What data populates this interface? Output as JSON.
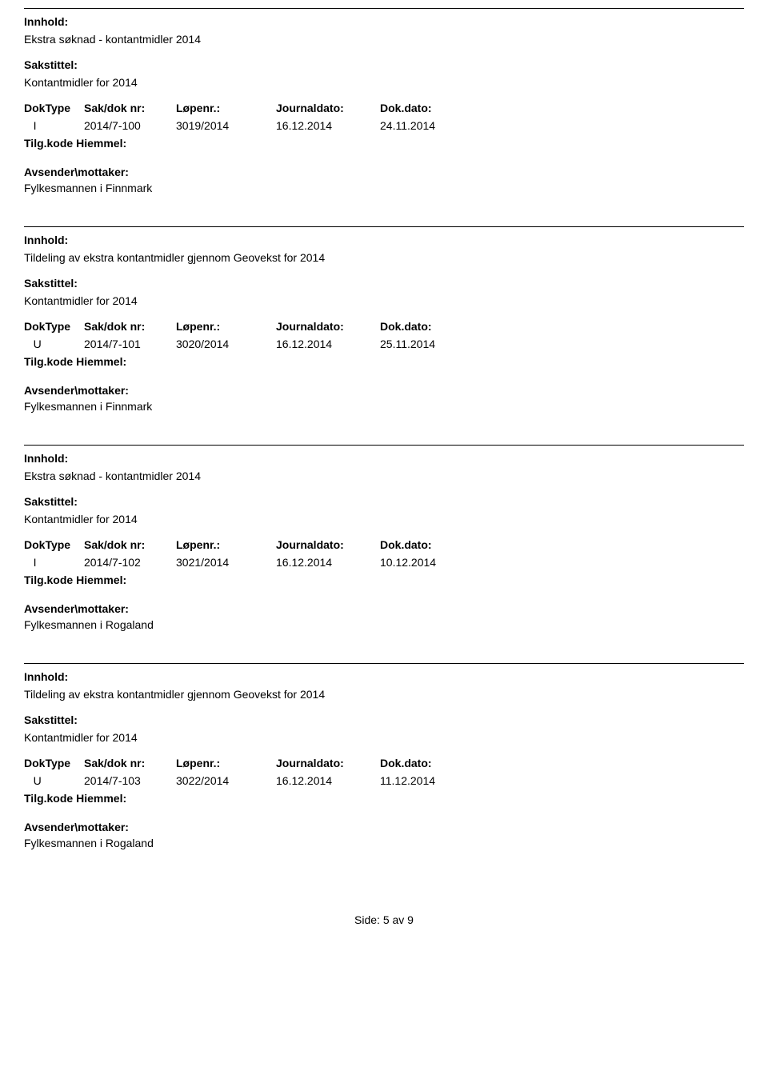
{
  "labels": {
    "innhold": "Innhold:",
    "sakstittel": "Sakstittel:",
    "doktype": "DokType",
    "sakdok": "Sak/dok nr:",
    "lopenr": "Løpenr.:",
    "journaldato": "Journaldato:",
    "dokdato": "Dok.dato:",
    "tilgkode": "Tilg.kode",
    "hjemmel": "Hiemmel:",
    "avsender": "Avsender\\mottaker:"
  },
  "entries": [
    {
      "innhold": "Ekstra søknad - kontantmidler 2014",
      "sakstittel": "Kontantmidler for 2014",
      "doktype": "I",
      "sakdok": "2014/7-100",
      "lopenr": "3019/2014",
      "journaldato": "16.12.2014",
      "dokdato": "24.11.2014",
      "avsender": "Fylkesmannen i  Finnmark"
    },
    {
      "innhold": "Tildeling av ekstra kontantmidler gjennom Geovekst for 2014",
      "sakstittel": "Kontantmidler for 2014",
      "doktype": "U",
      "sakdok": "2014/7-101",
      "lopenr": "3020/2014",
      "journaldato": "16.12.2014",
      "dokdato": "25.11.2014",
      "avsender": "Fylkesmannen i  Finnmark"
    },
    {
      "innhold": "Ekstra søknad - kontantmidler 2014",
      "sakstittel": "Kontantmidler for 2014",
      "doktype": "I",
      "sakdok": "2014/7-102",
      "lopenr": "3021/2014",
      "journaldato": "16.12.2014",
      "dokdato": "10.12.2014",
      "avsender": "Fylkesmannen i Rogaland"
    },
    {
      "innhold": "Tildeling av ekstra kontantmidler gjennom Geovekst for 2014",
      "sakstittel": "Kontantmidler for 2014",
      "doktype": "U",
      "sakdok": "2014/7-103",
      "lopenr": "3022/2014",
      "journaldato": "16.12.2014",
      "dokdato": "11.12.2014",
      "avsender": "Fylkesmannen i Rogaland"
    }
  ],
  "footer": "Side:  5 av  9"
}
